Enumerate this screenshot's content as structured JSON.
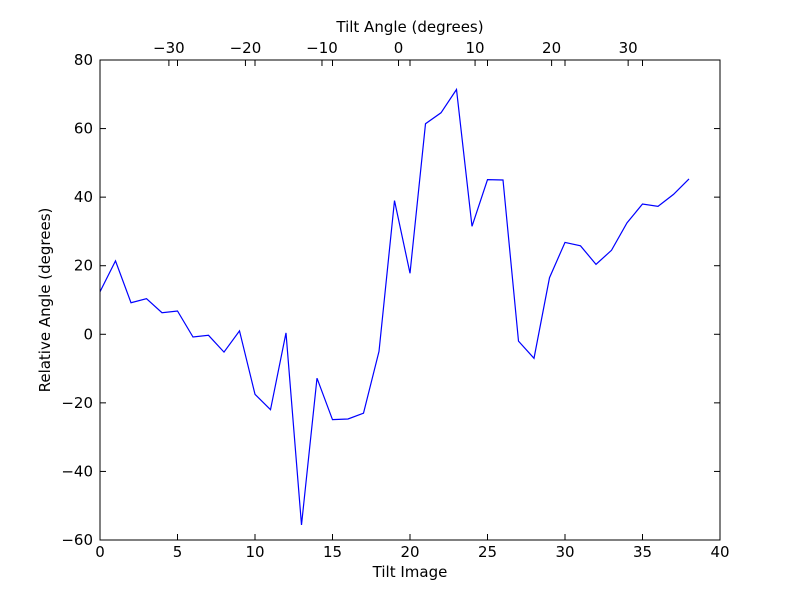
{
  "chart_data": {
    "type": "line",
    "xlabel": "Tilt Image",
    "ylabel": "Relative Angle (degrees)",
    "top_xlabel": "Tilt Angle (degrees)",
    "xlim": [
      0,
      40
    ],
    "ylim": [
      -60,
      80
    ],
    "xticks": [
      0,
      5,
      10,
      15,
      20,
      25,
      30,
      35,
      40
    ],
    "yticks": [
      -60,
      -40,
      -20,
      0,
      20,
      40,
      60,
      80
    ],
    "top_xlim_degrees": [
      -39,
      42
    ],
    "top_xticks": [
      -30,
      -20,
      -10,
      0,
      10,
      20,
      30
    ],
    "top_xtick_labels": [
      "−30",
      "−20",
      "−10",
      "0",
      "10",
      "20",
      "30"
    ],
    "grid": false,
    "series": [
      {
        "color": "#0000ff",
        "x": [
          0,
          1,
          2,
          3,
          4,
          5,
          6,
          7,
          8,
          9,
          10,
          11,
          12,
          13,
          14,
          15,
          16,
          17,
          18,
          19,
          20,
          21,
          22,
          23,
          24,
          25,
          26,
          27,
          28,
          29,
          30,
          31,
          32,
          33,
          34,
          35,
          36,
          37,
          38
        ],
        "values": [
          12.4,
          21.4,
          9.2,
          10.4,
          6.3,
          6.8,
          -0.8,
          -0.3,
          -5.2,
          1.0,
          -17.5,
          -22.0,
          0.4,
          -55.6,
          -12.8,
          -24.9,
          -24.7,
          -23.0,
          -5.0,
          39.0,
          17.8,
          61.4,
          64.6,
          71.4,
          31.5,
          45.1,
          45.0,
          -2.0,
          -7.0,
          16.5,
          26.8,
          25.8,
          20.4,
          24.5,
          32.5,
          38.0,
          37.3,
          40.8,
          45.3
        ]
      }
    ]
  }
}
